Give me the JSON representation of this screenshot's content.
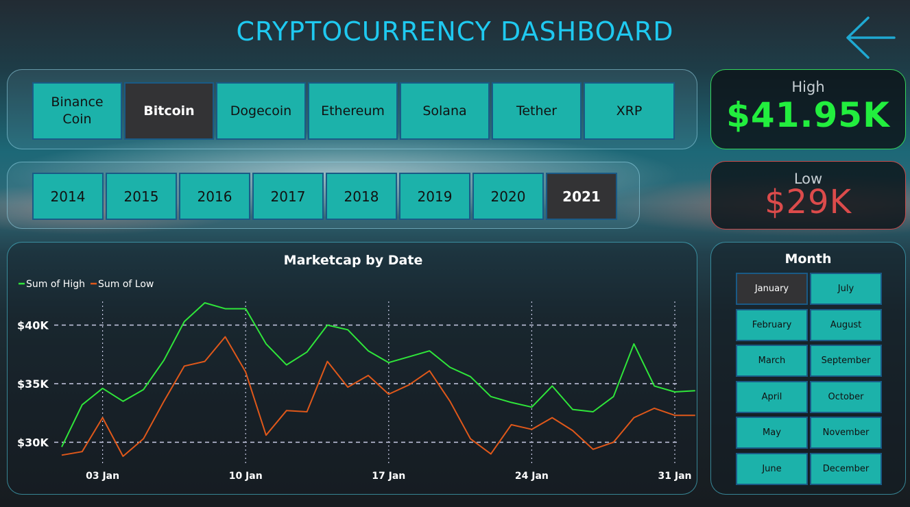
{
  "header": {
    "title": "CRYPTOCURRENCY DASHBOARD",
    "back_icon": "arrow-left-icon"
  },
  "coins": {
    "items": [
      "Binance Coin",
      "Bitcoin",
      "Dogecoin",
      "Ethereum",
      "Solana",
      "Tether",
      "XRP"
    ],
    "selected": "Bitcoin"
  },
  "years": {
    "items": [
      "2014",
      "2015",
      "2016",
      "2017",
      "2018",
      "2019",
      "2020",
      "2021"
    ],
    "selected": "2021"
  },
  "kpi": {
    "high": {
      "label": "High",
      "value": "$41.95K"
    },
    "low": {
      "label": "Low",
      "value": "$29K"
    }
  },
  "months": {
    "title": "Month",
    "items": [
      "January",
      "July",
      "February",
      "August",
      "March",
      "September",
      "April",
      "October",
      "May",
      "November",
      "June",
      "December"
    ],
    "selected": "January"
  },
  "colors": {
    "accent": "#1fc9f0",
    "button": "#1cb2aa",
    "selected_button": "#333335",
    "high": "#22ee3e",
    "low": "#dc4b4b",
    "series_high": "#2fe63a",
    "series_low": "#e0581a"
  },
  "chart_data": {
    "type": "line",
    "title": "Marketcap by Date",
    "xlabel": "",
    "ylabel": "",
    "x_ticks": [
      "03 Jan",
      "10 Jan",
      "17 Jan",
      "24 Jan",
      "31 Jan"
    ],
    "y_ticks": [
      "$30K",
      "$35K",
      "$40K"
    ],
    "ylim": [
      28000,
      42000
    ],
    "legend_position": "top-left",
    "grid": true,
    "x": [
      "2021-01-01",
      "2021-01-02",
      "2021-01-03",
      "2021-01-04",
      "2021-01-05",
      "2021-01-06",
      "2021-01-07",
      "2021-01-08",
      "2021-01-09",
      "2021-01-10",
      "2021-01-11",
      "2021-01-12",
      "2021-01-13",
      "2021-01-14",
      "2021-01-15",
      "2021-01-16",
      "2021-01-17",
      "2021-01-18",
      "2021-01-19",
      "2021-01-20",
      "2021-01-21",
      "2021-01-22",
      "2021-01-23",
      "2021-01-24",
      "2021-01-25",
      "2021-01-26",
      "2021-01-27",
      "2021-01-28",
      "2021-01-29",
      "2021-01-30",
      "2021-01-31",
      "2021-02-01"
    ],
    "series": [
      {
        "name": "Sum of High",
        "color": "#2fe63a",
        "values": [
          29600,
          33200,
          34600,
          33500,
          34500,
          37000,
          40300,
          41900,
          41400,
          41400,
          38400,
          36600,
          37700,
          40000,
          39600,
          37800,
          36800,
          37300,
          37800,
          36400,
          35600,
          33900,
          33400,
          33000,
          34800,
          32800,
          32600,
          33900,
          38400,
          34800,
          34300,
          34400
        ]
      },
      {
        "name": "Sum of Low",
        "color": "#e0581a",
        "values": [
          28900,
          29200,
          32100,
          28800,
          30300,
          33500,
          36500,
          36900,
          39000,
          36000,
          30600,
          32700,
          32600,
          36900,
          34700,
          35700,
          34100,
          34900,
          36100,
          33500,
          30300,
          29000,
          31500,
          31100,
          32100,
          31000,
          29400,
          30000,
          32100,
          32900,
          32300,
          32300
        ]
      }
    ]
  }
}
